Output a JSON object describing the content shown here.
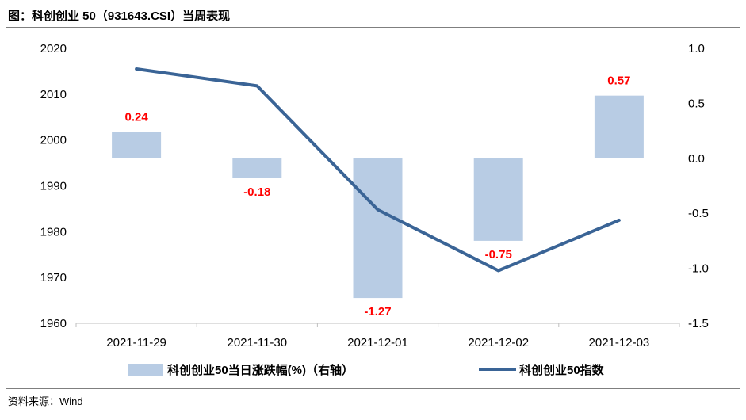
{
  "header": {
    "title": "图：科创创业 50（931643.CSI）当周表现"
  },
  "footer": {
    "source": "资料来源：Wind"
  },
  "chart_data": {
    "type": "bar+line",
    "categories": [
      "2021-11-29",
      "2021-11-30",
      "2021-12-01",
      "2021-12-02",
      "2021-12-03"
    ],
    "series": [
      {
        "name": "科创创业50当日涨跌幅(%)（右轴）",
        "type": "bar",
        "axis": "right",
        "color": "#b8cce4",
        "values": [
          0.24,
          -0.18,
          -1.27,
          -0.75,
          0.57
        ],
        "labels": [
          "0.24",
          "-0.18",
          "-1.27",
          "-0.75",
          "0.57"
        ]
      },
      {
        "name": "科创创业50指数",
        "type": "line",
        "axis": "left",
        "color": "#3a6496",
        "values": [
          2015.5,
          2011.8,
          1984.8,
          1971.5,
          1982.5
        ]
      }
    ],
    "left_axis": {
      "min": 1960,
      "max": 2020,
      "step": 10,
      "ticks": [
        "1960",
        "1970",
        "1980",
        "1990",
        "2000",
        "2010",
        "2020"
      ]
    },
    "right_axis": {
      "min": -1.5,
      "max": 1.0,
      "step": 0.5,
      "ticks": [
        "-1.5",
        "-1.0",
        "-0.5",
        "0.0",
        "0.5",
        "1.0"
      ]
    },
    "label_color": "#ff0000",
    "legend_position": "bottom"
  }
}
